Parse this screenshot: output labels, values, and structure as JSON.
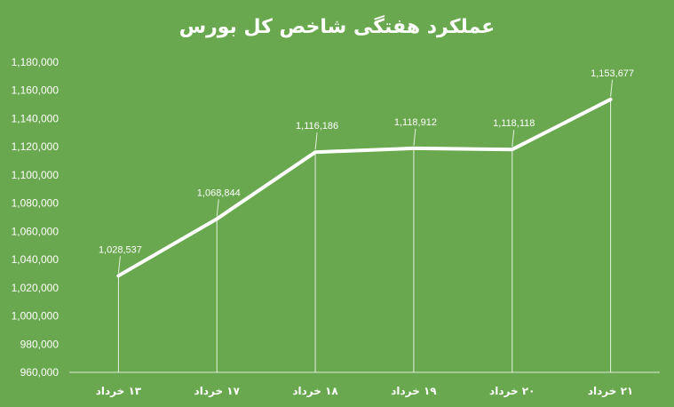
{
  "chart_data": {
    "type": "line",
    "title": "عملکرد هفتگی شاخص کل بورس",
    "categories": [
      "۱۳ خرداد",
      "۱۷ خرداد",
      "۱۸ خرداد",
      "۱۹ خرداد",
      "۲۰ خرداد",
      "۲۱ خرداد"
    ],
    "values": [
      1028537,
      1068844,
      1116186,
      1118912,
      1118118,
      1153677
    ],
    "data_labels": [
      "1,028,537",
      "1,068,844",
      "1,116,186",
      "1,118,912",
      "1,118,118",
      "1,153,677"
    ],
    "yticks": [
      "960,000",
      "980,000",
      "1,000,000",
      "1,020,000",
      "1,040,000",
      "1,060,000",
      "1,080,000",
      "1,100,000",
      "1,120,000",
      "1,140,000",
      "1,160,000",
      "1,180,000"
    ],
    "ylim": [
      960000,
      1180000
    ],
    "xlabel": "",
    "ylabel": "",
    "grid": false,
    "legend": "none",
    "colors": {
      "background": "#6aa84f",
      "line": "#ffffff",
      "text": "#ffffff"
    }
  }
}
